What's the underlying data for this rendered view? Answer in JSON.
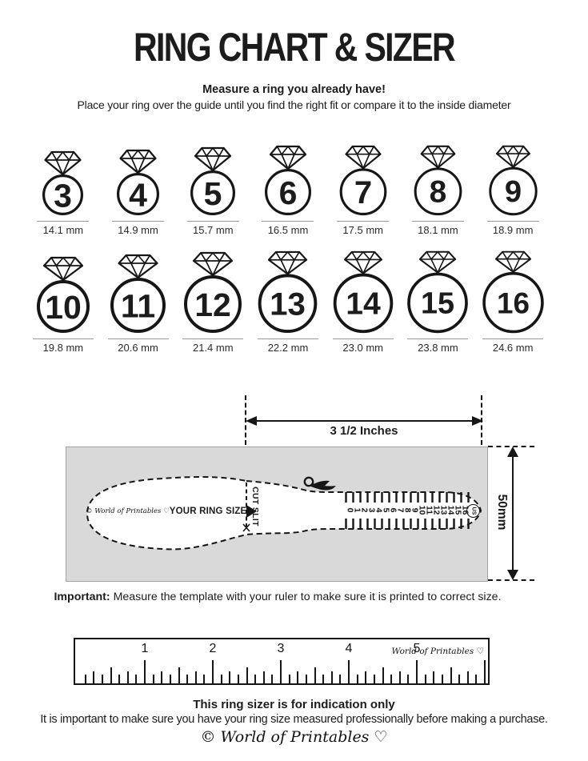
{
  "title": "RING CHART & SIZER",
  "intro": {
    "heading": "Measure a ring you already have!",
    "body": "Place your ring over the guide until you find the right fit or compare it to the inside diameter"
  },
  "ring_chart": {
    "rows": [
      {
        "rings": [
          {
            "size": "3",
            "mm": "14.1 mm",
            "d": 51
          },
          {
            "size": "4",
            "mm": "14.9 mm",
            "d": 53
          },
          {
            "size": "5",
            "mm": "15.7 mm",
            "d": 56
          },
          {
            "size": "6",
            "mm": "16.5 mm",
            "d": 58
          },
          {
            "size": "7",
            "mm": "17.5 mm",
            "d": 60
          },
          {
            "size": "8",
            "mm": "18.1 mm",
            "d": 63
          },
          {
            "size": "9",
            "mm": "18.9 mm",
            "d": 65
          }
        ]
      },
      {
        "rings": [
          {
            "size": "10",
            "mm": "19.8 mm",
            "d": 66
          },
          {
            "size": "11",
            "mm": "20.6 mm",
            "d": 69
          },
          {
            "size": "12",
            "mm": "21.4 mm",
            "d": 72
          },
          {
            "size": "13",
            "mm": "22.2 mm",
            "d": 75
          },
          {
            "size": "14",
            "mm": "23.0 mm",
            "d": 78
          },
          {
            "size": "15",
            "mm": "23.8 mm",
            "d": 82
          },
          {
            "size": "16",
            "mm": "24.6 mm",
            "d": 85
          }
        ]
      }
    ]
  },
  "sizer": {
    "width_label": "3 1/2 Inches",
    "height_label": "50mm",
    "brand": "© World of Printables ♡",
    "your_ring_size": "YOUR RING SIZE",
    "cut_slit": "CUT SLIT",
    "unit_badge": "US",
    "scale_numbers": [
      "0",
      "1",
      "2",
      "3",
      "4",
      "5",
      "6",
      "7",
      "8",
      "9",
      "10",
      "11",
      "12",
      "13",
      "14",
      "15",
      "16"
    ]
  },
  "important": {
    "label": "Important:",
    "text": " Measure the template with your ruler to make sure it is printed to correct size."
  },
  "ruler": {
    "numbers": [
      "1",
      "2",
      "3",
      "4",
      "5"
    ],
    "brand": "World of Printables ♡"
  },
  "footer": {
    "heading": "This ring sizer is for indication only",
    "body": "It is important to make sure you have your ring size measured professionally before making a purchase.",
    "brand": "© World of Printables ♡"
  },
  "colors": {
    "ink": "#161616",
    "panel_gray": "#d9d9d9",
    "underline_gray": "#999999"
  }
}
